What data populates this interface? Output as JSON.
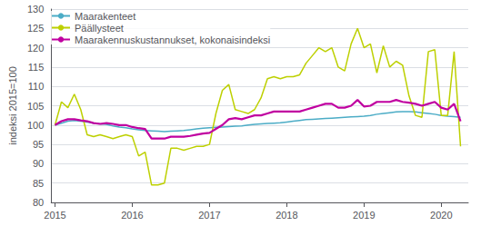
{
  "chart_data": {
    "type": "line",
    "ylabel": "indeksi 2015=100",
    "x": [
      2015,
      2015.0833,
      2015.1667,
      2015.25,
      2015.3333,
      2015.4167,
      2015.5,
      2015.5833,
      2015.6667,
      2015.75,
      2015.8333,
      2015.9167,
      2016,
      2016.0833,
      2016.1667,
      2016.25,
      2016.3333,
      2016.4167,
      2016.5,
      2016.5833,
      2016.6667,
      2016.75,
      2016.8333,
      2016.9167,
      2017,
      2017.0833,
      2017.1667,
      2017.25,
      2017.3333,
      2017.4167,
      2017.5,
      2017.5833,
      2017.6667,
      2017.75,
      2017.8333,
      2017.9167,
      2018,
      2018.0833,
      2018.1667,
      2018.25,
      2018.3333,
      2018.4167,
      2018.5,
      2018.5833,
      2018.6667,
      2018.75,
      2018.8333,
      2018.9167,
      2019,
      2019.0833,
      2019.1667,
      2019.25,
      2019.3333,
      2019.4167,
      2019.5,
      2019.5833,
      2019.6667,
      2019.75,
      2019.8333,
      2019.9167,
      2020,
      2020.0833,
      2020.1667,
      2020.25
    ],
    "series": [
      {
        "name": "Maarakenteet",
        "color": "#4bacc6",
        "values": [
          100.0,
          100.5,
          101.0,
          101.2,
          101.0,
          100.8,
          100.5,
          100.3,
          100.2,
          99.8,
          99.5,
          99.3,
          99.0,
          98.8,
          98.6,
          98.5,
          98.4,
          98.3,
          98.4,
          98.5,
          98.6,
          98.8,
          99.0,
          99.2,
          99.3,
          99.4,
          99.5,
          99.6,
          99.7,
          99.8,
          100.0,
          100.2,
          100.3,
          100.4,
          100.5,
          100.6,
          100.8,
          101.0,
          101.2,
          101.4,
          101.5,
          101.6,
          101.7,
          101.8,
          101.9,
          102.0,
          102.1,
          102.2,
          102.3,
          102.5,
          102.8,
          103.0,
          103.2,
          103.4,
          103.5,
          103.5,
          103.4,
          103.2,
          103.0,
          102.8,
          102.5,
          102.3,
          102.2,
          102.0
        ]
      },
      {
        "name": "Päällysteet",
        "color": "#bdd000",
        "values": [
          100.0,
          106.0,
          104.5,
          108.0,
          104.0,
          97.5,
          97.0,
          97.5,
          97.0,
          96.5,
          97.0,
          97.5,
          97.0,
          92.0,
          93.0,
          84.5,
          84.5,
          85.0,
          94.0,
          94.0,
          93.5,
          94.0,
          94.5,
          94.5,
          95.0,
          103.0,
          109.0,
          110.5,
          104.0,
          103.5,
          103.0,
          104.0,
          107.0,
          112.0,
          112.5,
          112.0,
          112.5,
          112.5,
          113.0,
          116.0,
          118.0,
          120.0,
          119.0,
          120.0,
          115.0,
          114.0,
          121.0,
          125.0,
          120.0,
          121.0,
          113.5,
          120.5,
          115.0,
          116.5,
          115.5,
          107.5,
          102.5,
          102.0,
          119.0,
          119.5,
          102.5,
          102.5,
          119.0,
          94.5
        ]
      },
      {
        "name": "Maarakennuskustannukset, kokonaisindeksi",
        "color": "#c000a0",
        "values": [
          100.0,
          101.0,
          101.5,
          101.5,
          101.2,
          101.0,
          100.5,
          100.3,
          100.5,
          100.3,
          100.0,
          100.0,
          99.5,
          99.2,
          99.0,
          96.5,
          96.5,
          96.5,
          97.0,
          97.0,
          97.0,
          97.2,
          97.5,
          97.8,
          98.0,
          99.0,
          100.0,
          101.5,
          101.8,
          101.5,
          102.0,
          102.5,
          102.5,
          103.0,
          103.5,
          103.5,
          103.5,
          103.5,
          103.5,
          104.0,
          104.5,
          105.0,
          105.5,
          105.5,
          104.5,
          104.5,
          105.0,
          106.5,
          104.8,
          105.0,
          106.0,
          106.0,
          106.0,
          106.5,
          106.0,
          105.8,
          105.5,
          105.0,
          105.5,
          106.0,
          104.5,
          104.0,
          105.5,
          101.0
        ]
      }
    ],
    "xlim": [
      2014.95,
      2020.35
    ],
    "xticks": [
      2015,
      2016,
      2017,
      2018,
      2019,
      2020
    ],
    "ylim": [
      80,
      130
    ],
    "yticks": [
      80,
      85,
      90,
      95,
      100,
      105,
      110,
      115,
      120,
      125,
      130
    ],
    "grid": true,
    "legend": "upper left"
  }
}
